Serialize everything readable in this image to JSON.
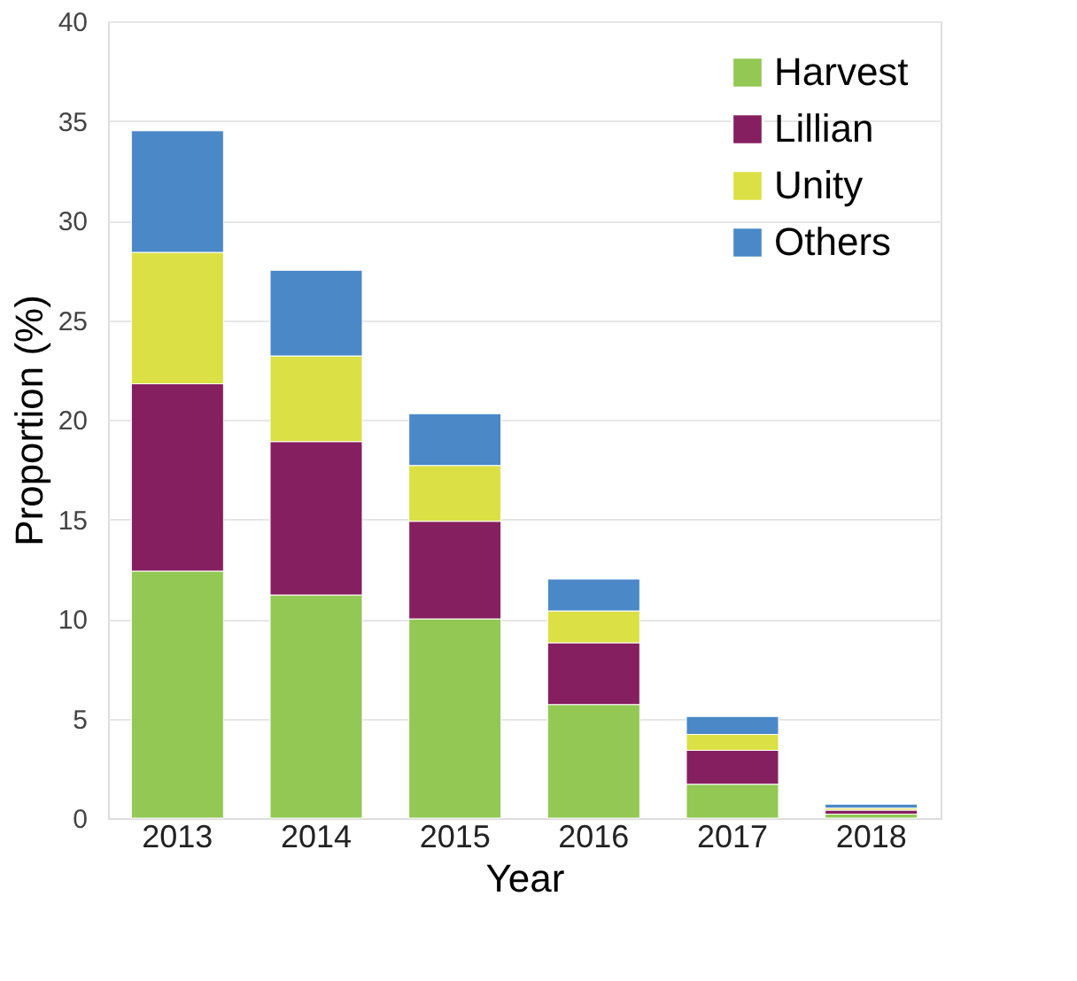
{
  "chart_data": {
    "type": "bar",
    "stacked": true,
    "xlabel": "Year",
    "ylabel": "Proportion (%)",
    "categories": [
      "2013",
      "2014",
      "2015",
      "2016",
      "2017",
      "2018"
    ],
    "series": [
      {
        "name": "Harvest",
        "color": "#92c853",
        "values": [
          12.4,
          11.2,
          10.0,
          5.7,
          1.7,
          0.2
        ]
      },
      {
        "name": "Lillian",
        "color": "#861f5f",
        "values": [
          9.4,
          7.7,
          4.9,
          3.1,
          1.7,
          0.2
        ]
      },
      {
        "name": "Unity",
        "color": "#dbe045",
        "values": [
          6.6,
          4.3,
          2.8,
          1.6,
          0.8,
          0.1
        ]
      },
      {
        "name": "Others",
        "color": "#4a88c8",
        "values": [
          6.1,
          4.3,
          2.6,
          1.6,
          0.9,
          0.2
        ]
      }
    ],
    "ylim": [
      0,
      40
    ],
    "yticks": [
      0,
      5,
      10,
      15,
      20,
      25,
      30,
      35,
      40
    ],
    "grid": "y",
    "legend": "top right"
  }
}
